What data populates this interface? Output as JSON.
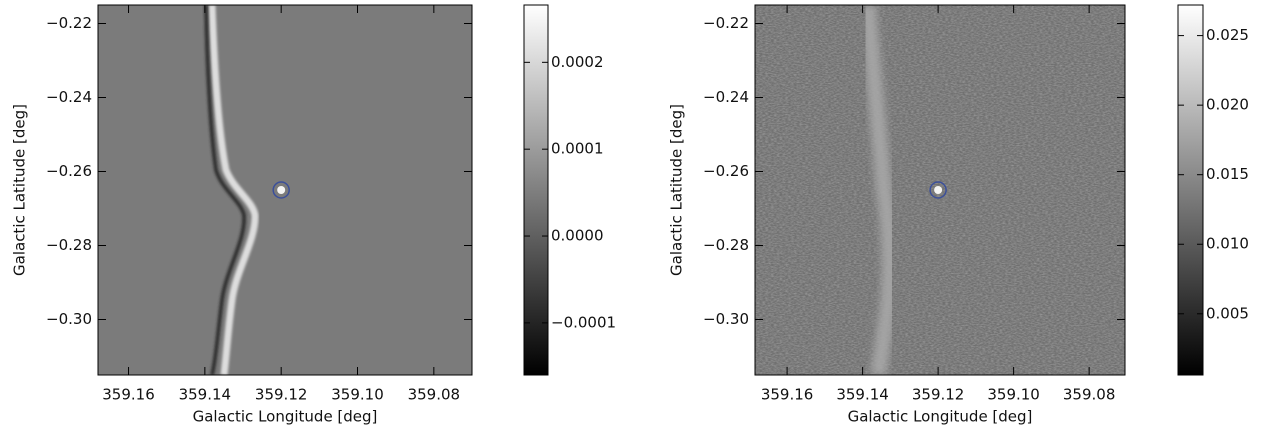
{
  "chart_data": [
    {
      "type": "image",
      "xlabel": "Galactic Longitude [deg]",
      "ylabel": "Galactic Latitude [deg]",
      "xlim": [
        359.168,
        359.07
      ],
      "ylim": [
        -0.315,
        -0.215
      ],
      "xticks": [
        359.16,
        359.14,
        359.12,
        {
          "value": 359.1,
          "label": "359.10"
        },
        359.08
      ],
      "yticks": [
        {
          "value": -0.22,
          "label": "−0.22"
        },
        {
          "value": -0.24,
          "label": "−0.24"
        },
        {
          "value": -0.26,
          "label": "−0.26"
        },
        {
          "value": -0.28,
          "label": "−0.28"
        },
        {
          "value": -0.3,
          "label": "−0.30"
        }
      ],
      "colorbar": {
        "lim": [
          -0.00016,
          0.000266
        ],
        "ticks": [
          0.0002,
          0.0001,
          {
            "value": 0,
            "label": "0.0000"
          },
          {
            "value": -0.0001,
            "label": "−0.0001"
          }
        ]
      },
      "points": {
        "x": [
          359.12
        ],
        "y": [
          -0.265
        ],
        "color": "#3b4f9a"
      }
    },
    {
      "type": "image",
      "xlabel": "Galactic Longitude [deg]",
      "ylabel": "Galactic Latitude [deg]",
      "xlim": [
        359.1685,
        359.0705
      ],
      "ylim": [
        -0.315,
        -0.215
      ],
      "xticks": [
        359.16,
        359.14,
        359.12,
        {
          "value": 359.1,
          "label": "359.10"
        },
        359.08
      ],
      "yticks": [
        {
          "value": -0.22,
          "label": "−0.22"
        },
        {
          "value": -0.24,
          "label": "−0.24"
        },
        {
          "value": -0.26,
          "label": "−0.26"
        },
        {
          "value": -0.28,
          "label": "−0.28"
        },
        {
          "value": -0.3,
          "label": "−0.30"
        }
      ],
      "colorbar": {
        "lim": [
          0.0006,
          0.0272
        ],
        "ticks": [
          0.025,
          {
            "value": 0.02,
            "label": "0.020"
          },
          0.015,
          {
            "value": 0.01,
            "label": "0.010"
          },
          0.005
        ]
      },
      "points": {
        "x": [
          359.12
        ],
        "y": [
          -0.265
        ],
        "color": "#3b4f9a"
      }
    }
  ]
}
